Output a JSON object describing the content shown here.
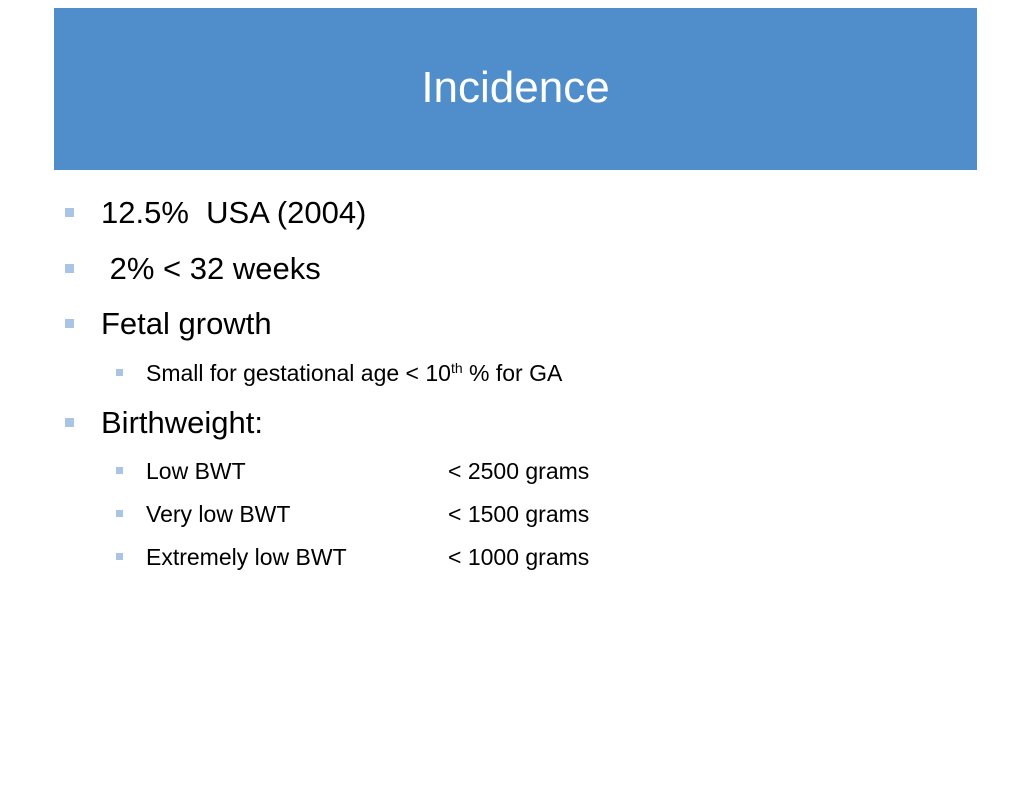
{
  "slide": {
    "title": "Incidence",
    "colors": {
      "title_band": "#508dcb",
      "title_text": "#ffffff",
      "bullet": "#a9c4e5"
    }
  },
  "bullets": {
    "b1": "12.5%  USA (2004)",
    "b2": " 2% < 32 weeks",
    "b3": "Fetal growth",
    "b3_sub1_prefix": "Small for gestational age < 10",
    "b3_sub1_sup": "th",
    "b3_sub1_suffix": " % for GA",
    "b4": "Birthweight:",
    "b4_sub": [
      {
        "label": "Low BWT",
        "value": "< 2500 grams"
      },
      {
        "label": "Very low BWT",
        "value": "< 1500 grams"
      },
      {
        "label": "Extremely low BWT",
        "value": "< 1000 grams"
      }
    ]
  }
}
